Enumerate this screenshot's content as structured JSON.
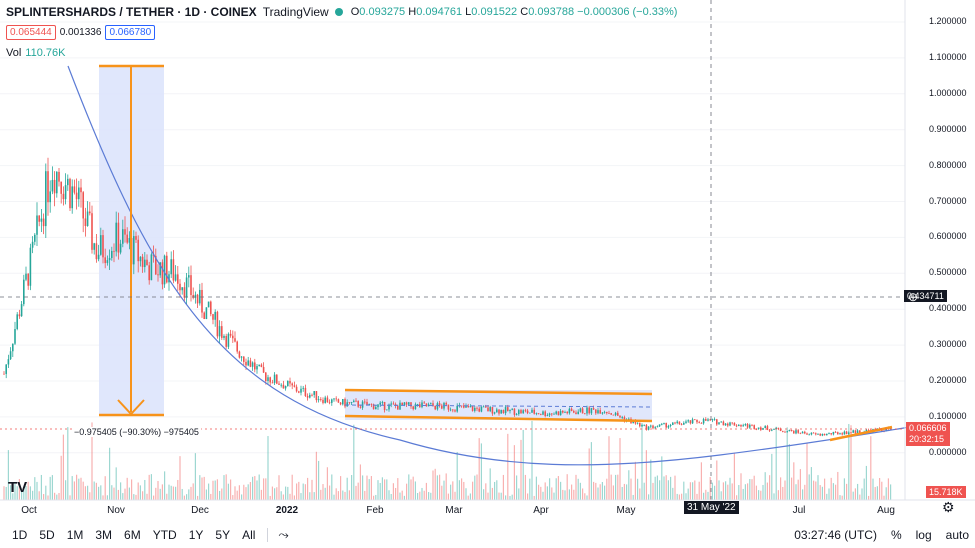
{
  "header": {
    "title": "SPLINTERSHARDS / TETHER · 1D · COINEX",
    "brand": "TradingView",
    "ohlc": {
      "o": "0.093275",
      "h": "0.094761",
      "l": "0.091522",
      "c": "0.093788",
      "chg": "−0.000306 (−0.33%)"
    },
    "ohlc_labels": {
      "o": "O",
      "h": "H",
      "l": "L",
      "c": "C"
    }
  },
  "price_tags": {
    "sell": "0.065444",
    "spread": "0.001336",
    "buy": "0.066780"
  },
  "volume": {
    "label": "Vol",
    "value": "110.76K"
  },
  "y_axis_labels": [
    "1.200000",
    "1.100000",
    "1.000000",
    "0.900000",
    "0.800000",
    "0.700000",
    "0.600000",
    "0.500000",
    "0.400000",
    "0.300000",
    "0.200000",
    "0.100000",
    "0.000000"
  ],
  "x_axis_labels": [
    "Oct",
    "Nov",
    "Dec",
    "2022",
    "Feb",
    "Mar",
    "Apr",
    "May",
    "Jul",
    "Aug"
  ],
  "markers": {
    "crosshair_price": "0.434711",
    "last_price": "0.066606",
    "countdown": "20:32:15",
    "volume_last": "15.718K",
    "crosshair_date": "31 May '22",
    "measure_label": "−0.975405 (−90.30%) −975405"
  },
  "bottom": {
    "timeframes": [
      "1D",
      "5D",
      "1M",
      "3M",
      "6M",
      "YTD",
      "1Y",
      "5Y",
      "All"
    ],
    "time": "03:27:46 (UTC)",
    "percent": "%",
    "log": "log",
    "auto": "auto"
  },
  "colors": {
    "up": "#26a69a",
    "down": "#ef5350",
    "curve": "#5b7bd5",
    "drawing": "#f7931a",
    "box": "#dbe3fb"
  },
  "chart_data": {
    "type": "candlestick",
    "ylim": [
      -0.05,
      1.22
    ],
    "x": [
      "2021-09-25",
      "2021-10-05",
      "2021-10-12",
      "2021-10-20",
      "2021-10-28",
      "2021-11-05",
      "2021-11-15",
      "2021-11-25",
      "2021-12-05",
      "2021-12-15",
      "2021-12-25",
      "2022-01-05",
      "2022-01-20",
      "2022-02-05",
      "2022-02-25",
      "2022-03-15",
      "2022-04-05",
      "2022-04-25",
      "2022-05-10",
      "2022-05-31",
      "2022-06-20",
      "2022-07-10",
      "2022-07-25",
      "2022-08-05"
    ],
    "close": [
      0.22,
      0.55,
      0.8,
      0.72,
      0.56,
      0.6,
      0.52,
      0.5,
      0.4,
      0.3,
      0.22,
      0.18,
      0.14,
      0.13,
      0.13,
      0.12,
      0.11,
      0.12,
      0.07,
      0.09,
      0.07,
      0.05,
      0.06,
      0.066
    ]
  }
}
